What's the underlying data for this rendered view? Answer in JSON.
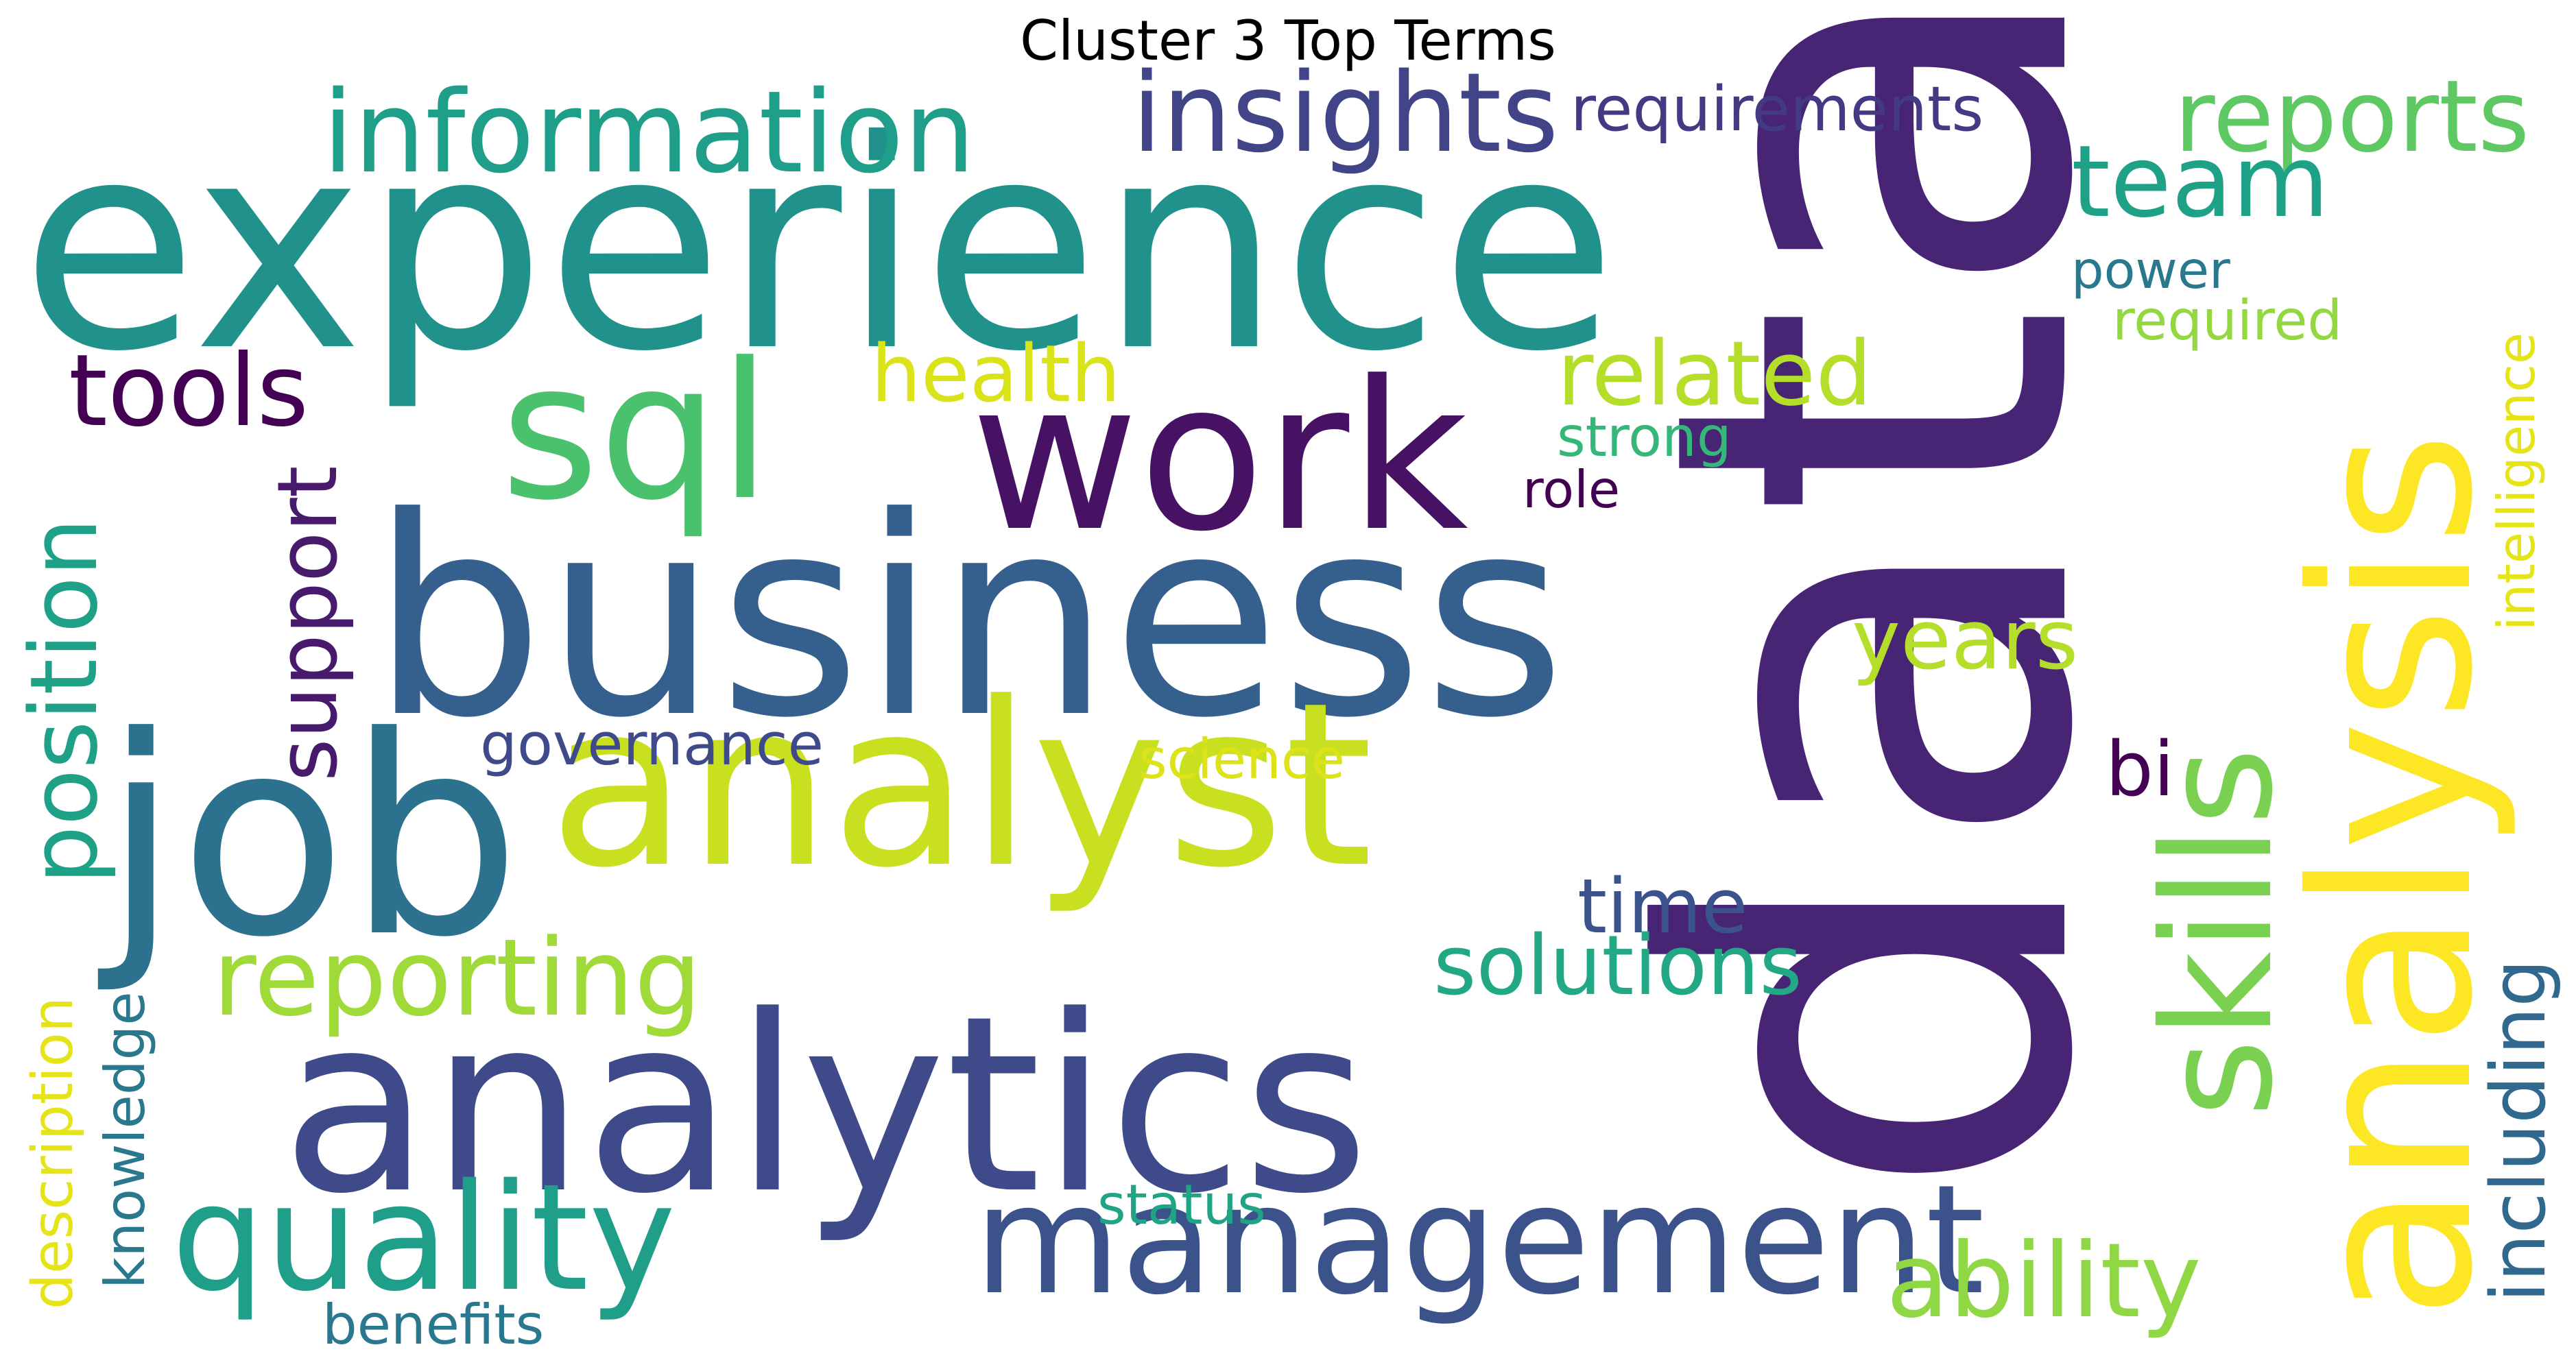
{
  "title": "Cluster 3 Top Terms",
  "words": [
    {
      "text": "data",
      "color": "#482475",
      "vertical": true
    },
    {
      "text": "experience",
      "color": "#21918c",
      "vertical": false
    },
    {
      "text": "business",
      "color": "#355f8d",
      "vertical": false
    },
    {
      "text": "analytics",
      "color": "#3e4a89",
      "vertical": false
    },
    {
      "text": "analyst",
      "color": "#c8e020",
      "vertical": false
    },
    {
      "text": "analysis",
      "color": "#fde725",
      "vertical": true
    },
    {
      "text": "job",
      "color": "#2c728e",
      "vertical": false
    },
    {
      "text": "work",
      "color": "#471164",
      "vertical": false
    },
    {
      "text": "skills",
      "color": "#7ad151",
      "vertical": true
    },
    {
      "text": "sql",
      "color": "#4ac16d",
      "vertical": false
    },
    {
      "text": "management",
      "color": "#3b528b",
      "vertical": false
    },
    {
      "text": "quality",
      "color": "#1f9e89",
      "vertical": false
    },
    {
      "text": "information",
      "color": "#1f9e89",
      "vertical": false
    },
    {
      "text": "insights",
      "color": "#414487",
      "vertical": false
    },
    {
      "text": "reporting",
      "color": "#a0da39",
      "vertical": false
    },
    {
      "text": "reports",
      "color": "#5ec962",
      "vertical": false
    },
    {
      "text": "position",
      "color": "#1fa187",
      "vertical": true
    },
    {
      "text": "ability",
      "color": "#8fd744",
      "vertical": false
    },
    {
      "text": "tools",
      "color": "#440154",
      "vertical": false
    },
    {
      "text": "team",
      "color": "#1fa187",
      "vertical": false
    },
    {
      "text": "solutions",
      "color": "#22a884",
      "vertical": false
    },
    {
      "text": "support",
      "color": "#481a6c",
      "vertical": true
    },
    {
      "text": "related",
      "color": "#b5de2b",
      "vertical": false
    },
    {
      "text": "years",
      "color": "#b5de2b",
      "vertical": false
    },
    {
      "text": "health",
      "color": "#dae319",
      "vertical": false
    },
    {
      "text": "including",
      "color": "#31688e",
      "vertical": true
    },
    {
      "text": "time",
      "color": "#3b528b",
      "vertical": false
    },
    {
      "text": "requirements",
      "color": "#443983",
      "vertical": false
    },
    {
      "text": "bi",
      "color": "#440154",
      "vertical": false
    },
    {
      "text": "intelligence",
      "color": "#e5e419",
      "vertical": true
    },
    {
      "text": "description",
      "color": "#e5e419",
      "vertical": true
    },
    {
      "text": "knowledge",
      "color": "#2a788e",
      "vertical": true
    },
    {
      "text": "governance",
      "color": "#3e4a89",
      "vertical": false
    },
    {
      "text": "strong",
      "color": "#35b779",
      "vertical": false
    },
    {
      "text": "power",
      "color": "#2a788e",
      "vertical": false
    },
    {
      "text": "required",
      "color": "#93d741",
      "vertical": false
    },
    {
      "text": "role",
      "color": "#440154",
      "vertical": false
    },
    {
      "text": "science",
      "color": "#dde318",
      "vertical": false
    },
    {
      "text": "status",
      "color": "#20a486",
      "vertical": false
    },
    {
      "text": "benefits",
      "color": "#2a788e",
      "vertical": false
    }
  ]
}
